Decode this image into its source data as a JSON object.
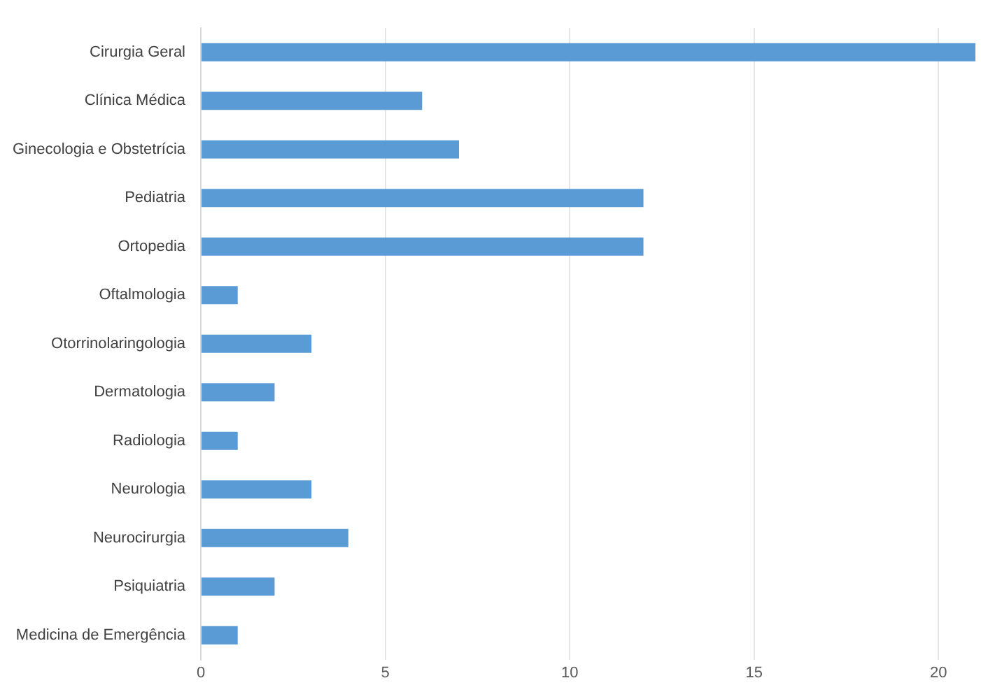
{
  "chart_data": {
    "type": "bar",
    "orientation": "horizontal",
    "categories": [
      "Cirurgia Geral",
      "Clínica Médica",
      "Ginecologia e Obstetrícia",
      "Pediatria",
      "Ortopedia",
      "Oftalmologia",
      "Otorrinolaringologia",
      "Dermatologia",
      "Radiologia",
      "Neurologia",
      "Neurocirurgia",
      "Psiquiatria",
      "Medicina de Emergência"
    ],
    "values": [
      21,
      6,
      7,
      12,
      12,
      1,
      3,
      2,
      1,
      3,
      4,
      2,
      1
    ],
    "color": "#5b9bd5",
    "xlim": [
      0,
      21
    ],
    "xticks": [
      0,
      5,
      10,
      15,
      20
    ],
    "grid": "x",
    "legend": false
  }
}
